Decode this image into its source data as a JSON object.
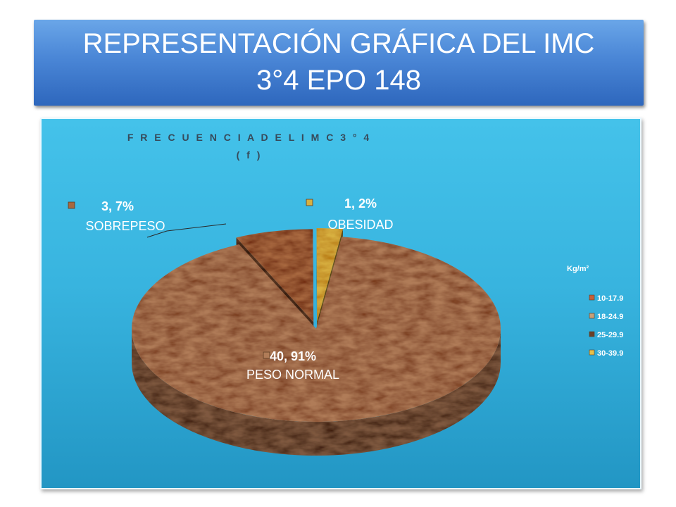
{
  "slide": {
    "title_line1": "REPRESENTACIÓN GRÁFICA DEL IMC",
    "title_line2": "3°4 EPO 148"
  },
  "chart_data": {
    "type": "pie",
    "title": "F R E C U E N C I A   D E L      I M C   3 ° 4",
    "subtitle": "( f )",
    "legend_title": "Kg/m²",
    "legend_position": "right",
    "legend": [
      "10-17.9",
      "18-24.9",
      "25-29.9",
      "30-39.9"
    ],
    "slices": [
      {
        "category": "18-24.9",
        "value": 40,
        "percent": 91,
        "label_value": "40, 91%",
        "label_name": "PESO NORMAL",
        "color": "#b07c58"
      },
      {
        "category": "25-29.9",
        "value": 3,
        "percent": 7,
        "label_value": "3, 7%",
        "label_name": "SOBREPESO",
        "color": "#a8683f"
      },
      {
        "category": "30-39.9",
        "value": 1,
        "percent": 2,
        "label_value": "1, 2%",
        "label_name": "OBESIDAD",
        "color": "#d8b040"
      }
    ],
    "colors": {
      "10-17.9": "#c86038",
      "18-24.9": "#c8a078",
      "25-29.9": "#6a4028",
      "30-39.9": "#e6c04a"
    }
  }
}
